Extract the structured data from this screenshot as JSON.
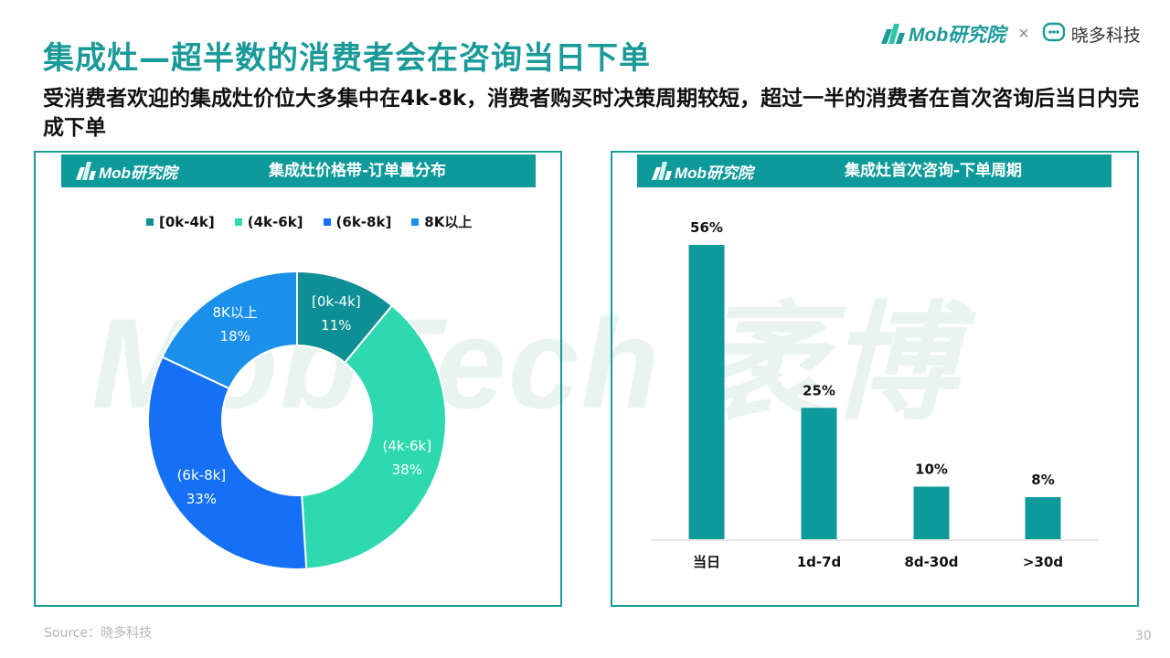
{
  "header": {
    "title": "集成灶—超半数的消费者会在咨询当日下单",
    "subtitle": "受消费者欢迎的集成灶价位大多集中在4k-8k，消费者购买时决策周期较短，超过一半的消费者在首次咨询后当日内完成下单",
    "brand_mob": "Mob研究院",
    "brand_sep": "×",
    "brand_partner": "晓多科技"
  },
  "watermark": "MobTech 袤博",
  "panels": {
    "left": {
      "logo": "Mob研究院",
      "title": "集成灶价格带-订单量分布"
    },
    "right": {
      "logo": "Mob研究院",
      "title": "集成灶首次咨询-下单周期"
    }
  },
  "chart_data": [
    {
      "type": "pie",
      "title": "集成灶价格带-订单量分布",
      "categories": [
        "[0k-4k]",
        "(4k-6k]",
        "(6k-8k]",
        "8K以上"
      ],
      "values": [
        11,
        38,
        33,
        18
      ],
      "value_labels": [
        "11%",
        "38%",
        "33%",
        "18%"
      ],
      "colors": [
        "#0e8f95",
        "#2ed9b0",
        "#1570f5",
        "#1a90ea"
      ],
      "donut": true,
      "legend_position": "top"
    },
    {
      "type": "bar",
      "title": "集成灶首次咨询-下单周期",
      "categories": [
        "当日",
        "1d-7d",
        "8d-30d",
        ">30d"
      ],
      "values": [
        56,
        25,
        10,
        8
      ],
      "value_labels": [
        "56%",
        "25%",
        "10%",
        "8%"
      ],
      "color": "#0e9a9a",
      "ylim": [
        0,
        56
      ]
    }
  ],
  "footer": {
    "source": "Source：晓多科技",
    "page": "30"
  }
}
